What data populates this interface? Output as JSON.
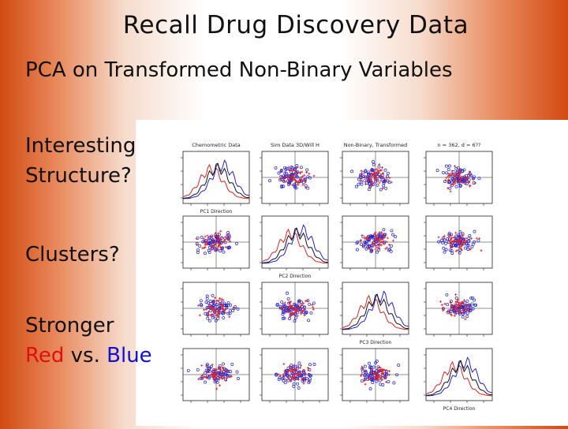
{
  "slide": {
    "title": "Recall Drug Discovery Data",
    "subtitle": "PCA on Transformed Non-Binary Variables"
  },
  "bullets": {
    "b1_line1": "Interesting",
    "b1_line2": "Structure?",
    "b2": "Clusters?",
    "b3_line1": "Stronger",
    "b3_red": "Red",
    "b3_vs": "vs.",
    "b3_blue": "Blue"
  },
  "figure": {
    "col_titles": [
      "Chemometric Data",
      "Sim Data 3D/Will H",
      "Non-Binary, Transformed",
      "n = 362, d = 6??"
    ],
    "diag_axis_labels": [
      "PC1 Direction",
      "PC2 Direction",
      "PC3 Direction",
      "PC4 Direction"
    ],
    "colors": {
      "red": "#e02020",
      "blue": "#2020d0",
      "axis": "#222222"
    }
  }
}
